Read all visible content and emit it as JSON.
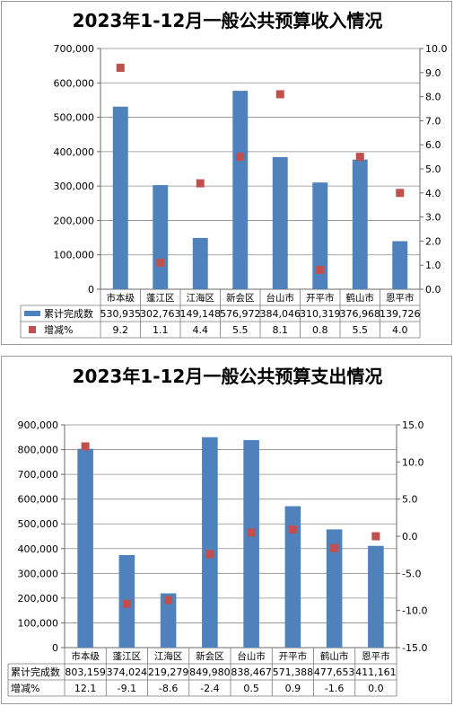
{
  "colors": {
    "bar": "#4f81bd",
    "marker": "#c0504d",
    "grid": "#8c8c8c"
  },
  "chart_data": [
    {
      "type": "bar",
      "title": "2023年1-12月一般公共预算收入情况",
      "categories": [
        "市本级",
        "蓬江区",
        "江海区",
        "新会区",
        "台山市",
        "开平市",
        "鹤山市",
        "恩平市"
      ],
      "series": [
        {
          "name": "累计完成数",
          "type": "bar",
          "axis": "left",
          "values": [
            530935,
            302763,
            149148,
            576972,
            384046,
            310319,
            376968,
            139726
          ],
          "labels": [
            "530,935",
            "302,763",
            "149,148",
            "576,972",
            "384,046",
            "310,319",
            "376,968",
            "139,726"
          ]
        },
        {
          "name": "增减%",
          "type": "scatter",
          "axis": "right",
          "values": [
            9.2,
            1.1,
            4.4,
            5.5,
            8.1,
            0.8,
            5.5,
            4.0
          ],
          "labels": [
            "9.2",
            "1.1",
            "4.4",
            "5.5",
            "8.1",
            "0.8",
            "5.5",
            "4.0"
          ]
        }
      ],
      "y_left": {
        "min": 0,
        "max": 700000,
        "ticks": [
          "0",
          "100,000",
          "200,000",
          "300,000",
          "400,000",
          "500,000",
          "600,000",
          "700,000"
        ]
      },
      "y_right": {
        "min": 0,
        "max": 10,
        "ticks": [
          "0.0",
          "1.0",
          "2.0",
          "3.0",
          "4.0",
          "5.0",
          "6.0",
          "7.0",
          "8.0",
          "9.0",
          "10.0"
        ]
      },
      "grid": true,
      "legend": "data-table"
    },
    {
      "type": "bar",
      "title": "2023年1-12月一般公共预算支出情况",
      "categories": [
        "市本级",
        "蓬江区",
        "江海区",
        "新会区",
        "台山市",
        "开平市",
        "鹤山市",
        "恩平市"
      ],
      "series": [
        {
          "name": "累计完成数",
          "type": "bar",
          "axis": "left",
          "values": [
            803159,
            374024,
            219279,
            849980,
            838467,
            571388,
            477653,
            411161
          ],
          "labels": [
            "803,159",
            "374,024",
            "219,279",
            "849,980",
            "838,467",
            "571,388",
            "477,653",
            "411,161"
          ]
        },
        {
          "name": "增减%",
          "type": "scatter",
          "axis": "right",
          "values": [
            12.1,
            -9.1,
            -8.6,
            -2.4,
            0.5,
            0.9,
            -1.6,
            0.0
          ],
          "labels": [
            "12.1",
            "-9.1",
            "-8.6",
            "-2.4",
            "0.5",
            "0.9",
            "-1.6",
            "0.0"
          ]
        }
      ],
      "y_left": {
        "min": 0,
        "max": 900000,
        "ticks": [
          "0",
          "100,000",
          "200,000",
          "300,000",
          "400,000",
          "500,000",
          "600,000",
          "700,000",
          "800,000",
          "900,000"
        ]
      },
      "y_right": {
        "min": -15,
        "max": 15,
        "ticks": [
          "-15.0",
          "-10.0",
          "-5.0",
          "0.0",
          "5.0",
          "10.0",
          "15.0"
        ]
      },
      "grid": true,
      "legend": "data-table"
    }
  ]
}
